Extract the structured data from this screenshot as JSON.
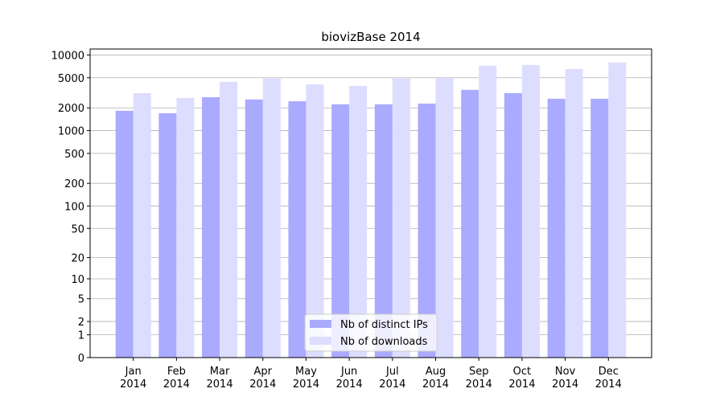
{
  "chart_data": {
    "type": "bar",
    "title": "biovizBase 2014",
    "categories": [
      "Jan 2014",
      "Feb 2014",
      "Mar 2014",
      "Apr 2014",
      "May 2014",
      "Jun 2014",
      "Jul 2014",
      "Aug 2014",
      "Sep 2014",
      "Oct 2014",
      "Nov 2014",
      "Dec 2014"
    ],
    "series": [
      {
        "name": "Nb of distinct IPs",
        "color": "#aaaaff",
        "values": [
          1830,
          1700,
          2770,
          2580,
          2450,
          2230,
          2230,
          2280,
          3460,
          3130,
          2640,
          2640
        ]
      },
      {
        "name": "Nb of downloads",
        "color": "#ddddff",
        "values": [
          3130,
          2710,
          4420,
          4880,
          4100,
          3910,
          4880,
          4990,
          7210,
          7380,
          6530,
          7940
        ]
      }
    ],
    "ylim": [
      0,
      12000
    ],
    "yticks": [
      0,
      1,
      2,
      5,
      10,
      20,
      50,
      100,
      200,
      500,
      1000,
      2000,
      5000,
      10000
    ],
    "yscale": "log1p",
    "grid": true,
    "legend": "lower center"
  }
}
